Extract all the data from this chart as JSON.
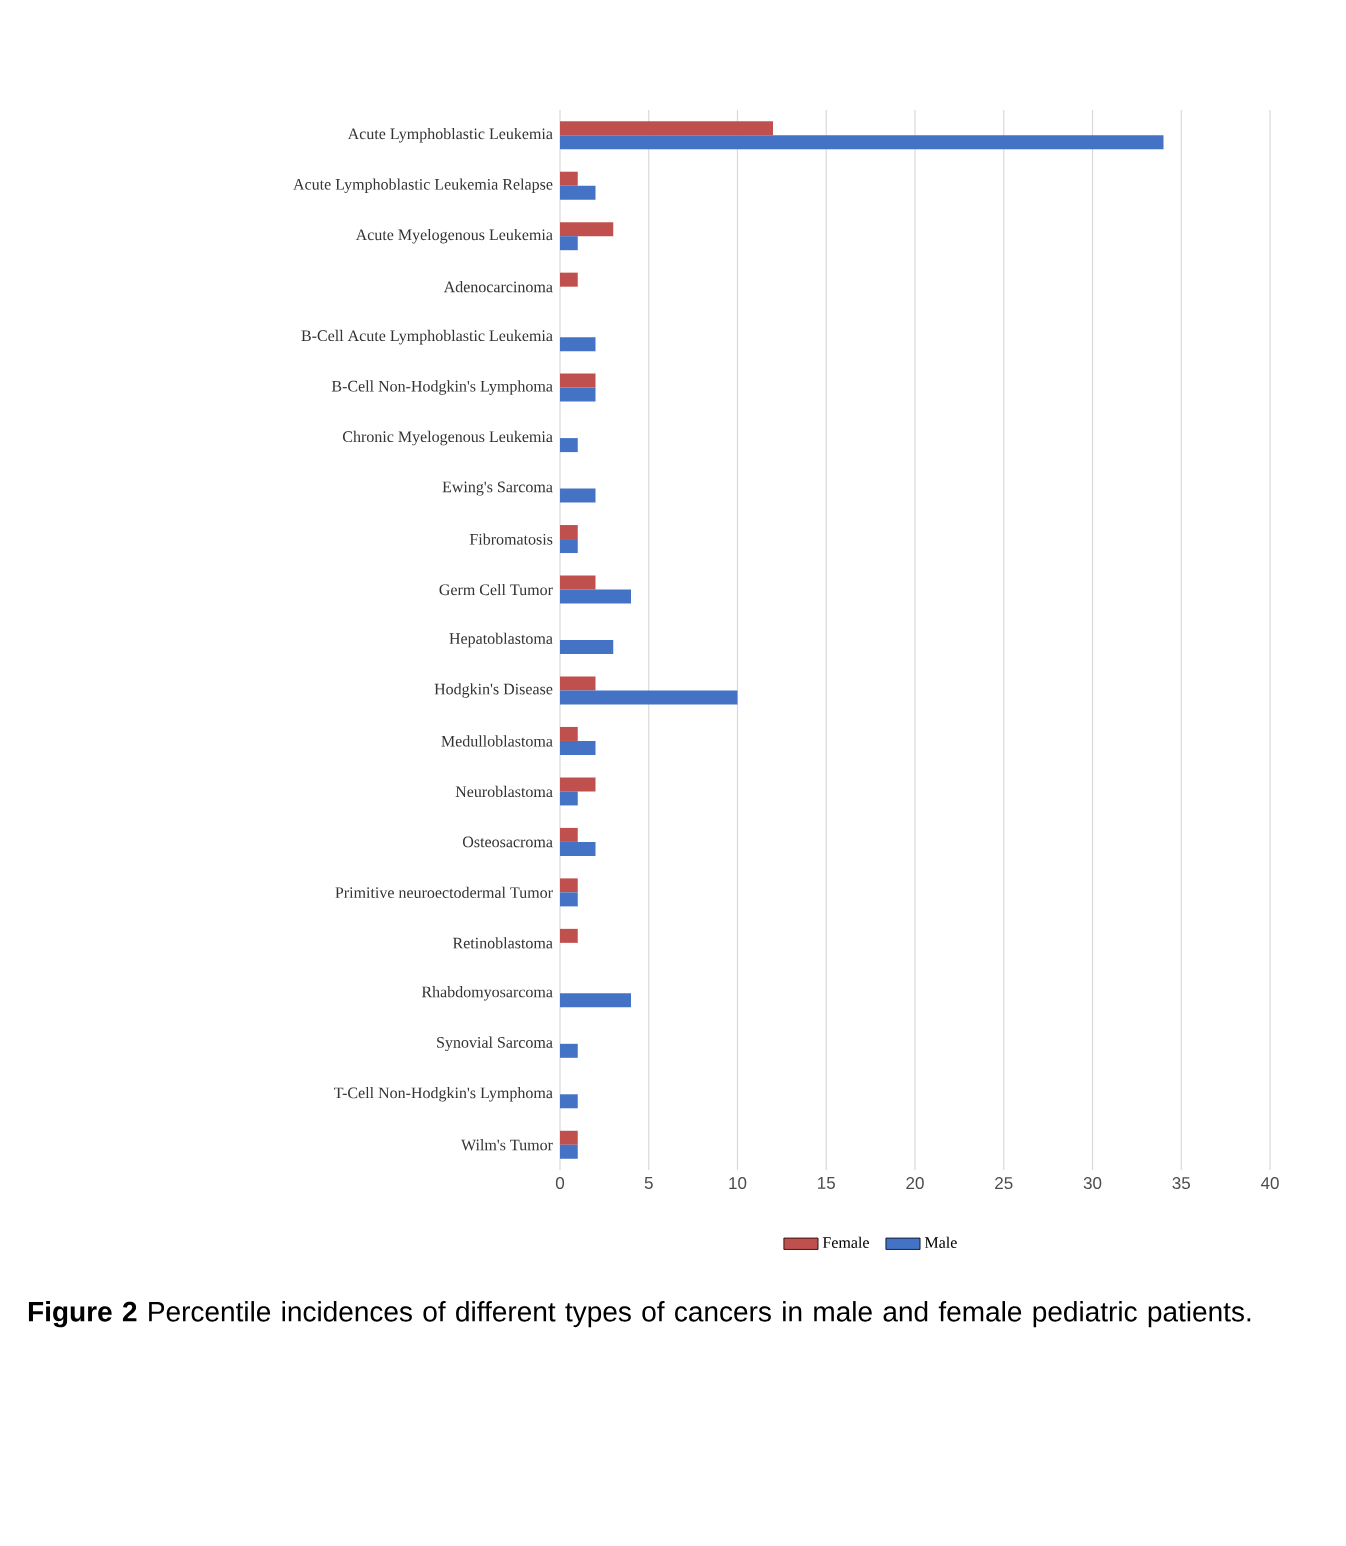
{
  "chart_data": {
    "type": "bar",
    "orientation": "horizontal",
    "categories": [
      "Acute Lymphoblastic Leukemia",
      "Acute Lymphoblastic Leukemia  Relapse",
      "Acute Myelogenous Leukemia",
      "Adenocarcinoma",
      "B-Cell  Acute Lymphoblastic Leukemia",
      "B-Cell Non-Hodgkin's Lymphoma",
      "Chronic Myelogenous Leukemia",
      "Ewing's Sarcoma",
      "Fibromatosis",
      "Germ Cell Tumor",
      "Hepatoblastoma",
      "Hodgkin's Disease",
      "Medulloblastoma",
      "Neuroblastoma",
      "Osteosacroma",
      "Primitive neuroectodermal Tumor",
      "Retinoblastoma",
      "Rhabdomyosarcoma",
      "Synovial Sarcoma",
      "T-Cell Non-Hodgkin's Lymphoma",
      "Wilm's Tumor"
    ],
    "series": [
      {
        "name": "Female",
        "color": "#c0504d",
        "values": [
          12,
          1,
          3,
          1,
          null,
          2,
          null,
          null,
          1,
          2,
          null,
          2,
          1,
          2,
          1,
          1,
          1,
          null,
          null,
          null,
          1
        ]
      },
      {
        "name": "Male",
        "color": "#4472c4",
        "values": [
          34,
          2,
          1,
          null,
          2,
          2,
          1,
          2,
          1,
          4,
          3,
          10,
          2,
          1,
          2,
          1,
          null,
          4,
          1,
          1,
          1
        ]
      }
    ],
    "xlim": [
      0,
      40
    ],
    "xticks": [
      0,
      5,
      10,
      15,
      20,
      25,
      30,
      35,
      40
    ],
    "grid": "x",
    "legend": "bottom",
    "annotations": [
      "**Figure 2** Percentile incidences of different types of cancers in male and female pediatric patients."
    ]
  }
}
